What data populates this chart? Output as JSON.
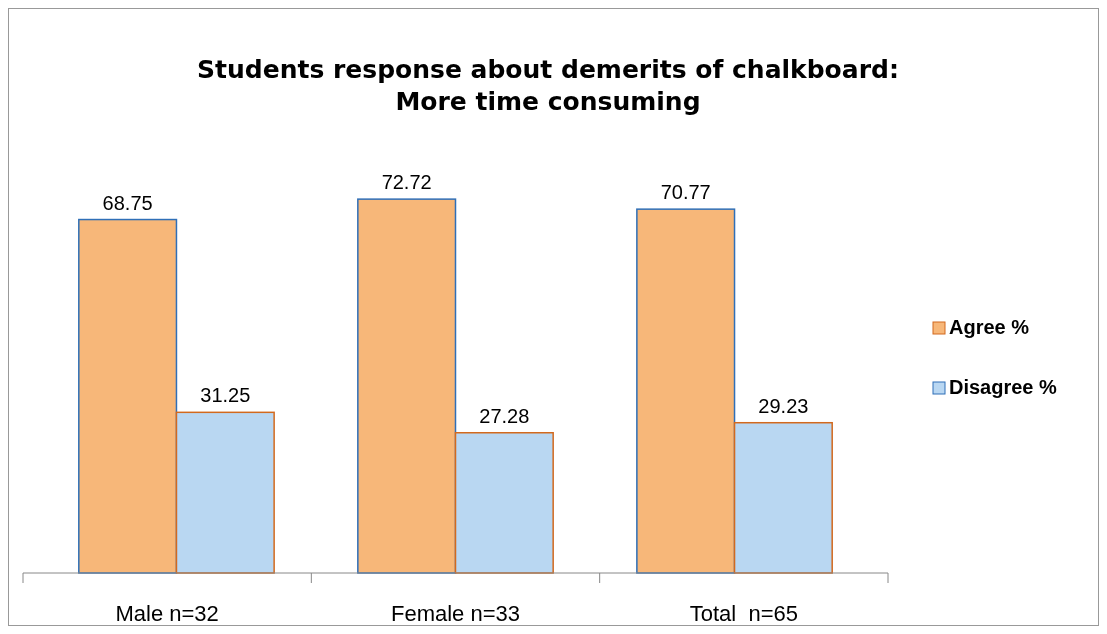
{
  "chart_data": {
    "type": "bar",
    "title": "Students response about demerits of chalkboard:\nMore time consuming",
    "categories": [
      "Male n=32",
      "Female n=33",
      "Total  n=65"
    ],
    "series": [
      {
        "name": "Agree %",
        "color": "#f7b779",
        "values": [
          68.75,
          72.72,
          70.77
        ]
      },
      {
        "name": "Disagree %",
        "color": "#b9d7f2",
        "values": [
          31.25,
          27.28,
          29.23
        ]
      }
    ],
    "data_labels": true,
    "legend": "right"
  }
}
